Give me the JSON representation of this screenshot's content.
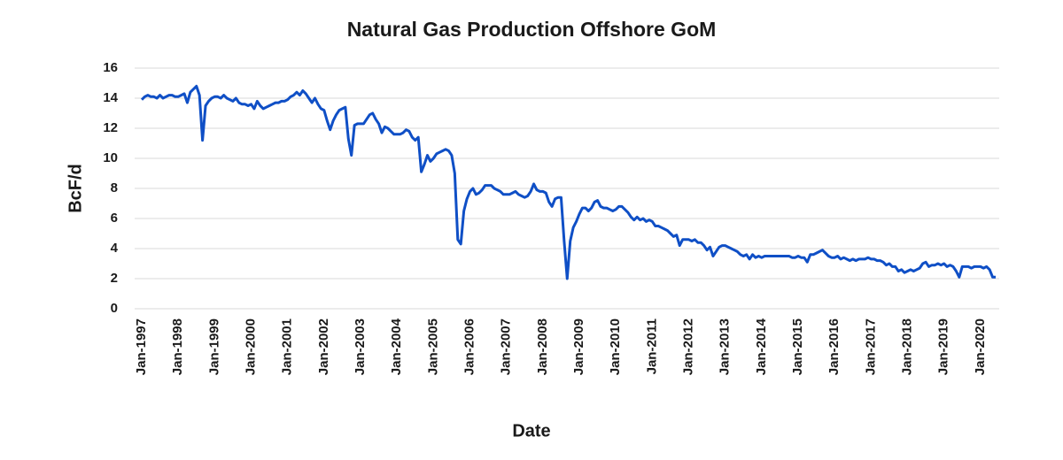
{
  "chart_data": {
    "type": "line",
    "title": "Natural Gas Production Offshore GoM",
    "x_label": "Date",
    "y_label": "BcF/d",
    "categories": [
      "Jan-1997",
      null,
      null,
      null,
      null,
      null,
      null,
      null,
      null,
      null,
      null,
      null,
      "Jan-1998",
      null,
      null,
      null,
      null,
      null,
      null,
      null,
      null,
      null,
      null,
      null,
      "Jan-1999",
      null,
      null,
      null,
      null,
      null,
      null,
      null,
      null,
      null,
      null,
      null,
      "Jan-2000",
      null,
      null,
      null,
      null,
      null,
      null,
      null,
      null,
      null,
      null,
      null,
      "Jan-2001",
      null,
      null,
      null,
      null,
      null,
      null,
      null,
      null,
      null,
      null,
      null,
      "Jan-2002",
      null,
      null,
      null,
      null,
      null,
      null,
      null,
      null,
      null,
      null,
      null,
      "Jan-2003",
      null,
      null,
      null,
      null,
      null,
      null,
      null,
      null,
      null,
      null,
      null,
      "Jan-2004",
      null,
      null,
      null,
      null,
      null,
      null,
      null,
      null,
      null,
      null,
      null,
      "Jan-2005",
      null,
      null,
      null,
      null,
      null,
      null,
      null,
      null,
      null,
      null,
      null,
      "Jan-2006",
      null,
      null,
      null,
      null,
      null,
      null,
      null,
      null,
      null,
      null,
      null,
      "Jan-2007",
      null,
      null,
      null,
      null,
      null,
      null,
      null,
      null,
      null,
      null,
      null,
      "Jan-2008",
      null,
      null,
      null,
      null,
      null,
      null,
      null,
      null,
      null,
      null,
      null,
      "Jan-2009",
      null,
      null,
      null,
      null,
      null,
      null,
      null,
      null,
      null,
      null,
      null,
      "Jan-2010",
      null,
      null,
      null,
      null,
      null,
      null,
      null,
      null,
      null,
      null,
      null,
      "Jan-2011",
      null,
      null,
      null,
      null,
      null,
      null,
      null,
      null,
      null,
      null,
      null,
      "Jan-2012",
      null,
      null,
      null,
      null,
      null,
      null,
      null,
      null,
      null,
      null,
      null,
      "Jan-2013",
      null,
      null,
      null,
      null,
      null,
      null,
      null,
      null,
      null,
      null,
      null,
      "Jan-2014",
      null,
      null,
      null,
      null,
      null,
      null,
      null,
      null,
      null,
      null,
      null,
      "Jan-2015",
      null,
      null,
      null,
      null,
      null,
      null,
      null,
      null,
      null,
      null,
      null,
      "Jan-2016",
      null,
      null,
      null,
      null,
      null,
      null,
      null,
      null,
      null,
      null,
      null,
      "Jan-2017",
      null,
      null,
      null,
      null,
      null,
      null,
      null,
      null,
      null,
      null,
      null,
      "Jan-2018",
      null,
      null,
      null,
      null,
      null,
      null,
      null,
      null,
      null,
      null,
      null,
      "Jan-2019",
      null,
      null,
      null,
      null,
      null,
      null,
      null,
      null,
      null,
      null,
      null,
      "Jan-2020",
      null,
      null,
      null,
      null,
      null
    ],
    "series": [
      {
        "color": "#0f4fc6",
        "values": [
          13.9,
          14.1,
          14.2,
          14.1,
          14.1,
          14.0,
          14.2,
          14.0,
          14.1,
          14.2,
          14.2,
          14.1,
          14.1,
          14.2,
          14.3,
          13.7,
          14.4,
          14.6,
          14.8,
          14.2,
          11.2,
          13.5,
          13.8,
          14.0,
          14.1,
          14.1,
          14.0,
          14.2,
          14.0,
          13.9,
          13.8,
          14.0,
          13.7,
          13.6,
          13.6,
          13.5,
          13.6,
          13.3,
          13.8,
          13.5,
          13.3,
          13.4,
          13.5,
          13.6,
          13.7,
          13.7,
          13.8,
          13.8,
          13.9,
          14.1,
          14.2,
          14.4,
          14.2,
          14.5,
          14.3,
          14.0,
          13.7,
          14.0,
          13.6,
          13.3,
          13.2,
          12.5,
          11.9,
          12.5,
          12.9,
          13.2,
          13.3,
          13.4,
          11.3,
          10.2,
          12.2,
          12.3,
          12.3,
          12.3,
          12.6,
          12.9,
          13.0,
          12.6,
          12.3,
          11.7,
          12.1,
          12.0,
          11.8,
          11.6,
          11.6,
          11.6,
          11.7,
          11.9,
          11.8,
          11.4,
          11.2,
          11.4,
          9.1,
          9.6,
          10.2,
          9.8,
          10.0,
          10.3,
          10.4,
          10.5,
          10.6,
          10.5,
          10.2,
          9.0,
          4.6,
          4.3,
          6.5,
          7.3,
          7.8,
          8.0,
          7.6,
          7.7,
          7.9,
          8.2,
          8.2,
          8.2,
          8.0,
          7.9,
          7.8,
          7.6,
          7.6,
          7.6,
          7.7,
          7.8,
          7.6,
          7.5,
          7.4,
          7.5,
          7.8,
          8.3,
          7.9,
          7.8,
          7.8,
          7.7,
          7.1,
          6.8,
          7.3,
          7.4,
          7.4,
          4.5,
          2.0,
          4.5,
          5.4,
          5.8,
          6.3,
          6.7,
          6.7,
          6.5,
          6.7,
          7.1,
          7.2,
          6.8,
          6.7,
          6.7,
          6.6,
          6.5,
          6.6,
          6.8,
          6.8,
          6.6,
          6.4,
          6.1,
          5.9,
          6.1,
          5.9,
          6.0,
          5.8,
          5.9,
          5.8,
          5.5,
          5.5,
          5.4,
          5.3,
          5.2,
          5.0,
          4.8,
          4.9,
          4.2,
          4.6,
          4.6,
          4.6,
          4.5,
          4.6,
          4.4,
          4.4,
          4.2,
          3.9,
          4.1,
          3.5,
          3.8,
          4.1,
          4.2,
          4.2,
          4.1,
          4.0,
          3.9,
          3.8,
          3.6,
          3.5,
          3.6,
          3.3,
          3.6,
          3.4,
          3.5,
          3.4,
          3.5,
          3.5,
          3.5,
          3.5,
          3.5,
          3.5,
          3.5,
          3.5,
          3.5,
          3.4,
          3.4,
          3.5,
          3.4,
          3.4,
          3.1,
          3.6,
          3.6,
          3.7,
          3.8,
          3.9,
          3.7,
          3.5,
          3.4,
          3.4,
          3.5,
          3.3,
          3.4,
          3.3,
          3.2,
          3.3,
          3.2,
          3.3,
          3.3,
          3.3,
          3.4,
          3.3,
          3.3,
          3.2,
          3.2,
          3.1,
          2.9,
          3.0,
          2.8,
          2.8,
          2.5,
          2.6,
          2.4,
          2.5,
          2.6,
          2.5,
          2.6,
          2.7,
          3.0,
          3.1,
          2.8,
          2.9,
          2.9,
          3.0,
          2.9,
          3.0,
          2.8,
          2.9,
          2.8,
          2.5,
          2.1,
          2.8,
          2.8,
          2.8,
          2.7,
          2.8,
          2.8,
          2.8,
          2.7,
          2.8,
          2.6,
          2.1,
          2.1
        ]
      }
    ],
    "ylim": [
      0,
      16
    ],
    "yticks": [
      0,
      2,
      4,
      6,
      8,
      10,
      12,
      14,
      16
    ],
    "grid": true
  }
}
